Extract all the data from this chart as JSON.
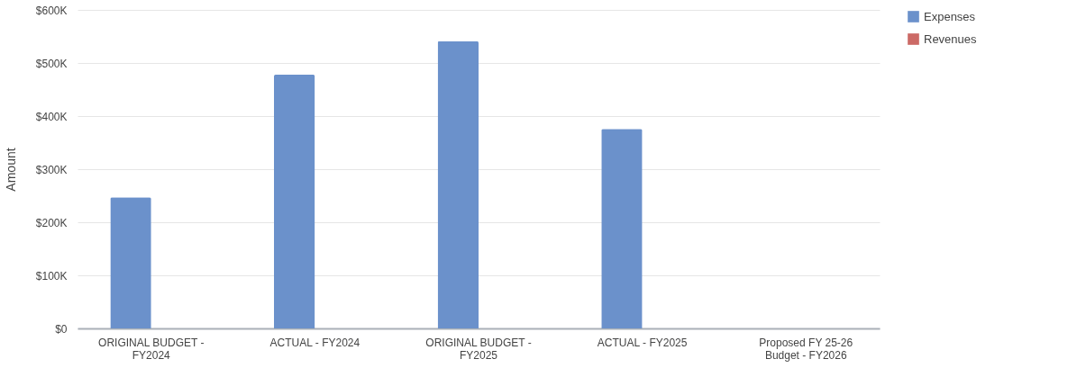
{
  "chart_data": {
    "type": "bar",
    "ylabel": "Amount",
    "categories": [
      "ORIGINAL BUDGET - FY2024",
      "ACTUAL - FY2024",
      "ORIGINAL BUDGET - FY2025",
      "ACTUAL - FY2025",
      "Proposed FY 25-26 Budget - FY2026"
    ],
    "series": [
      {
        "name": "Expenses",
        "color": "#6b91cb",
        "values": [
          247000,
          478000,
          541000,
          376000,
          null
        ]
      },
      {
        "name": "Revenues",
        "color": "#cc6a66",
        "values": [
          null,
          null,
          null,
          null,
          null
        ]
      }
    ],
    "ylim": [
      0,
      600000
    ],
    "yticks": [
      {
        "value": 0,
        "label": "$0"
      },
      {
        "value": 100000,
        "label": "$100K"
      },
      {
        "value": 200000,
        "label": "$200K"
      },
      {
        "value": 300000,
        "label": "$300K"
      },
      {
        "value": 400000,
        "label": "$400K"
      },
      {
        "value": 500000,
        "label": "$500K"
      },
      {
        "value": 600000,
        "label": "$600K"
      }
    ],
    "grid": "y",
    "legend": "top right"
  }
}
